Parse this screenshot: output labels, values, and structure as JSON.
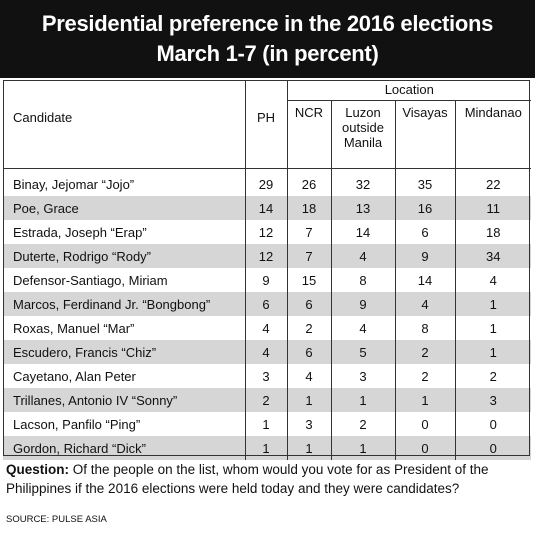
{
  "header": {
    "title_lines": [
      "Presidential preference in the 2016 elections",
      "March 1-7 (in percent)"
    ]
  },
  "table": {
    "columns": [
      "Candidate",
      "PH"
    ],
    "group": "Location",
    "group_columns": [
      "NCR",
      "Luzon outside Manila",
      "Visayas",
      "Mindanao"
    ],
    "rows": [
      [
        "Binay, Jejomar “Jojo”",
        29,
        26,
        32,
        35,
        22
      ],
      [
        "Poe, Grace",
        14,
        18,
        13,
        16,
        11
      ],
      [
        "Estrada, Joseph “Erap”",
        12,
        7,
        14,
        6,
        18
      ],
      [
        "Duterte, Rodrigo “Rody”",
        12,
        7,
        4,
        9,
        34
      ],
      [
        "Defensor-Santiago, Miriam",
        9,
        15,
        8,
        14,
        4
      ],
      [
        "Marcos, Ferdinand Jr. “Bongbong”",
        6,
        6,
        9,
        4,
        1
      ],
      [
        "Roxas, Manuel “Mar”",
        4,
        2,
        4,
        8,
        1
      ],
      [
        "Escudero, Francis “Chiz”",
        4,
        6,
        5,
        2,
        1
      ],
      [
        "Cayetano, Alan Peter",
        3,
        4,
        3,
        2,
        2
      ],
      [
        "Trillanes, Antonio IV “Sonny”",
        2,
        1,
        1,
        1,
        3
      ],
      [
        "Lacson, Panfilo “Ping”",
        1,
        3,
        2,
        0,
        0
      ],
      [
        "Gordon, Richard “Dick”",
        1,
        1,
        1,
        0,
        0
      ]
    ]
  },
  "question": {
    "label": "Question:",
    "text": "Of the people on the list, whom would you vote for as President of the Philippines if the 2016 elections were held today and they were candidates?"
  },
  "source": "SOURCE: PULSE ASIA"
}
